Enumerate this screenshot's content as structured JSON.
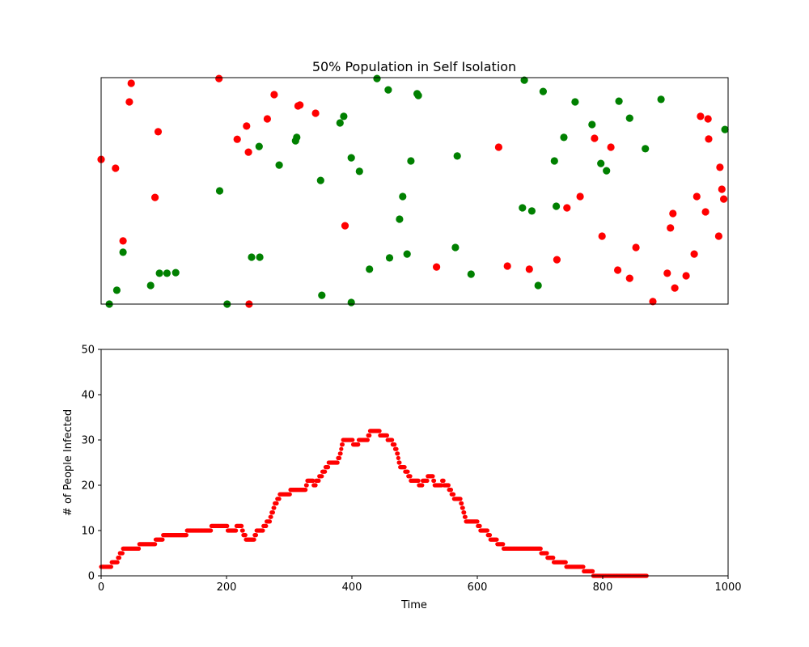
{
  "colors": {
    "infected": "#ff0000",
    "healthy": "#008000",
    "axes": "#000000",
    "background": "#ffffff"
  },
  "chart_data": [
    {
      "type": "scatter",
      "title": "50% Population in Self Isolation",
      "xlabel": "",
      "ylabel": "",
      "axes_ticks": false,
      "grid": false,
      "xlim": [
        0,
        1000
      ],
      "ylim": [
        0,
        1000
      ],
      "series": [
        {
          "color": "#ff0000",
          "points": [
            [
              0,
              639
            ],
            [
              23,
              600
            ],
            [
              35,
              279
            ],
            [
              45,
              893
            ],
            [
              48,
              975
            ],
            [
              86,
              471
            ],
            [
              91,
              761
            ],
            [
              188,
              996
            ],
            [
              217,
              728
            ],
            [
              232,
              786
            ],
            [
              235,
              671
            ],
            [
              236,
              0
            ],
            [
              265,
              818
            ],
            [
              276,
              925
            ],
            [
              314,
              875
            ],
            [
              317,
              879
            ],
            [
              342,
              843
            ],
            [
              389,
              346
            ],
            [
              535,
              164
            ],
            [
              634,
              693
            ],
            [
              648,
              168
            ],
            [
              683,
              154
            ],
            [
              727,
              196
            ],
            [
              743,
              425
            ],
            [
              764,
              475
            ],
            [
              787,
              732
            ],
            [
              799,
              300
            ],
            [
              813,
              693
            ],
            [
              824,
              150
            ],
            [
              843,
              114
            ],
            [
              853,
              250
            ],
            [
              880,
              11
            ],
            [
              903,
              136
            ],
            [
              908,
              336
            ],
            [
              912,
              400
            ],
            [
              915,
              71
            ],
            [
              933,
              125
            ],
            [
              946,
              221
            ],
            [
              950,
              475
            ],
            [
              956,
              829
            ],
            [
              964,
              407
            ],
            [
              968,
              818
            ],
            [
              969,
              729
            ],
            [
              985,
              300
            ],
            [
              987,
              604
            ],
            [
              990,
              507
            ],
            [
              993,
              464
            ]
          ]
        },
        {
          "color": "#008000",
          "points": [
            [
              13,
              0
            ],
            [
              25,
              61
            ],
            [
              35,
              229
            ],
            [
              79,
              82
            ],
            [
              93,
              136
            ],
            [
              105,
              136
            ],
            [
              119,
              139
            ],
            [
              189,
              500
            ],
            [
              201,
              0
            ],
            [
              240,
              207
            ],
            [
              253,
              207
            ],
            [
              252,
              696
            ],
            [
              284,
              614
            ],
            [
              310,
              721
            ],
            [
              312,
              736
            ],
            [
              350,
              546
            ],
            [
              352,
              39
            ],
            [
              381,
              800
            ],
            [
              387,
              829
            ],
            [
              399,
              646
            ],
            [
              399,
              7
            ],
            [
              412,
              586
            ],
            [
              428,
              154
            ],
            [
              440,
              996
            ],
            [
              458,
              946
            ],
            [
              460,
              204
            ],
            [
              476,
              375
            ],
            [
              481,
              475
            ],
            [
              488,
              221
            ],
            [
              494,
              632
            ],
            [
              504,
              929
            ],
            [
              506,
              921
            ],
            [
              565,
              250
            ],
            [
              568,
              654
            ],
            [
              590,
              132
            ],
            [
              672,
              425
            ],
            [
              675,
              989
            ],
            [
              687,
              411
            ],
            [
              697,
              82
            ],
            [
              705,
              939
            ],
            [
              723,
              632
            ],
            [
              726,
              432
            ],
            [
              738,
              736
            ],
            [
              756,
              893
            ],
            [
              783,
              793
            ],
            [
              797,
              621
            ],
            [
              806,
              589
            ],
            [
              826,
              896
            ],
            [
              843,
              821
            ],
            [
              868,
              686
            ],
            [
              893,
              904
            ],
            [
              995,
              771
            ]
          ]
        }
      ]
    },
    {
      "type": "scatter",
      "title": "",
      "xlabel": "Time",
      "ylabel": "# of People Infected",
      "grid": false,
      "xlim": [
        0,
        1000
      ],
      "ylim": [
        0,
        50
      ],
      "xticks": [
        0,
        200,
        400,
        600,
        800,
        1000
      ],
      "yticks": [
        0,
        10,
        20,
        30,
        40,
        50
      ],
      "series": [
        {
          "color": "#ff0000",
          "keypoints": [
            [
              0,
              2
            ],
            [
              15,
              2
            ],
            [
              18,
              3
            ],
            [
              25,
              3
            ],
            [
              28,
              4
            ],
            [
              32,
              5
            ],
            [
              37,
              6
            ],
            [
              60,
              6
            ],
            [
              62,
              7
            ],
            [
              85,
              7
            ],
            [
              88,
              8
            ],
            [
              97,
              8
            ],
            [
              100,
              9
            ],
            [
              135,
              9
            ],
            [
              138,
              10
            ],
            [
              175,
              10
            ],
            [
              177,
              11
            ],
            [
              200,
              11
            ],
            [
              202,
              10
            ],
            [
              215,
              10
            ],
            [
              217,
              11
            ],
            [
              223,
              11
            ],
            [
              225,
              10
            ],
            [
              228,
              9
            ],
            [
              232,
              8
            ],
            [
              243,
              8
            ],
            [
              246,
              9
            ],
            [
              250,
              10
            ],
            [
              258,
              10
            ],
            [
              260,
              11
            ],
            [
              268,
              12
            ],
            [
              273,
              14
            ],
            [
              278,
              16
            ],
            [
              283,
              17
            ],
            [
              287,
              18
            ],
            [
              300,
              18
            ],
            [
              303,
              19
            ],
            [
              325,
              19
            ],
            [
              328,
              20
            ],
            [
              330,
              21
            ],
            [
              337,
              21
            ],
            [
              340,
              20
            ],
            [
              345,
              21
            ],
            [
              350,
              22
            ],
            [
              355,
              23
            ],
            [
              360,
              24
            ],
            [
              365,
              25
            ],
            [
              375,
              25
            ],
            [
              380,
              26
            ],
            [
              383,
              28
            ],
            [
              387,
              30
            ],
            [
              400,
              30
            ],
            [
              402,
              29
            ],
            [
              410,
              29
            ],
            [
              412,
              30
            ],
            [
              425,
              30
            ],
            [
              427,
              31
            ],
            [
              430,
              32
            ],
            [
              443,
              32
            ],
            [
              445,
              31
            ],
            [
              455,
              31
            ],
            [
              457,
              30
            ],
            [
              463,
              30
            ],
            [
              466,
              29
            ],
            [
              470,
              28
            ],
            [
              474,
              26
            ],
            [
              477,
              24
            ],
            [
              482,
              24
            ],
            [
              487,
              23
            ],
            [
              492,
              22
            ],
            [
              495,
              21
            ],
            [
              505,
              21
            ],
            [
              507,
              20
            ],
            [
              512,
              20
            ],
            [
              514,
              21
            ],
            [
              520,
              21
            ],
            [
              522,
              22
            ],
            [
              528,
              22
            ],
            [
              530,
              21
            ],
            [
              532,
              20
            ],
            [
              543,
              20
            ],
            [
              545,
              21
            ],
            [
              547,
              20
            ],
            [
              552,
              20
            ],
            [
              556,
              19
            ],
            [
              560,
              18
            ],
            [
              565,
              17
            ],
            [
              572,
              17
            ],
            [
              575,
              16
            ],
            [
              578,
              14
            ],
            [
              582,
              12
            ],
            [
              598,
              12
            ],
            [
              602,
              11
            ],
            [
              607,
              10
            ],
            [
              615,
              10
            ],
            [
              618,
              9
            ],
            [
              622,
              8
            ],
            [
              630,
              8
            ],
            [
              632,
              7
            ],
            [
              640,
              7
            ],
            [
              642,
              6
            ],
            [
              700,
              6
            ],
            [
              703,
              5
            ],
            [
              710,
              5
            ],
            [
              713,
              4
            ],
            [
              720,
              4
            ],
            [
              722,
              3
            ],
            [
              740,
              3
            ],
            [
              742,
              2
            ],
            [
              768,
              2
            ],
            [
              770,
              1
            ],
            [
              783,
              1
            ],
            [
              785,
              0
            ],
            [
              870,
              0
            ]
          ]
        }
      ]
    }
  ]
}
